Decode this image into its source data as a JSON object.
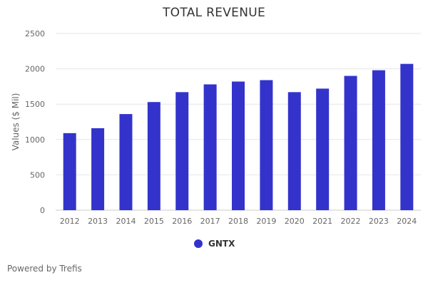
{
  "chart_data": {
    "type": "bar",
    "title": "TOTAL REVENUE",
    "ylabel": "Values ($ Mil)",
    "xlabel": "",
    "categories": [
      "2012",
      "2013",
      "2014",
      "2015",
      "2016",
      "2017",
      "2018",
      "2019",
      "2020",
      "2021",
      "2022",
      "2023",
      "2024"
    ],
    "series": [
      {
        "name": "GNTX",
        "values": [
          1090,
          1160,
          1360,
          1530,
          1670,
          1780,
          1820,
          1840,
          1670,
          1720,
          1900,
          1980,
          2070
        ]
      }
    ],
    "ylim": [
      0,
      2500
    ],
    "yticks": [
      0,
      500,
      1000,
      1500,
      2000,
      2500
    ],
    "grid": true,
    "legend": "bottom-center"
  },
  "colors": {
    "bar": "#3333cc",
    "grid": "#e6e6e6",
    "axis_text": "#666666"
  },
  "footer": {
    "text": "Powered by Trefis"
  }
}
